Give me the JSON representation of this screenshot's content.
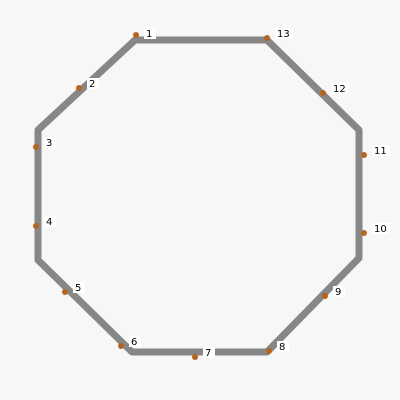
{
  "diagram": {
    "colors": {
      "background": "#f7f7f7",
      "outline": "#7a7a7a",
      "point": "#b5651d",
      "label_background": "#ffffff",
      "label_text": "#000000"
    },
    "points": [
      {
        "label": "1"
      },
      {
        "label": "2"
      },
      {
        "label": "3"
      },
      {
        "label": "4"
      },
      {
        "label": "5"
      },
      {
        "label": "6"
      },
      {
        "label": "7"
      },
      {
        "label": "8"
      },
      {
        "label": "9"
      },
      {
        "label": "10"
      },
      {
        "label": "11"
      },
      {
        "label": "12"
      },
      {
        "label": "13"
      }
    ]
  }
}
